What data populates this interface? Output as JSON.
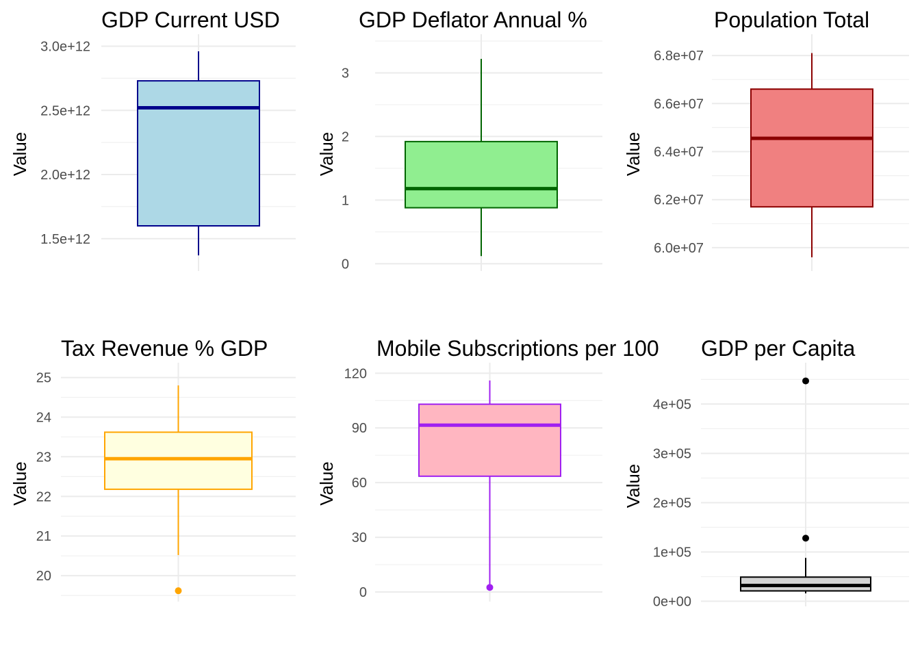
{
  "chart_data": [
    {
      "type": "box",
      "title": "GDP Current USD",
      "ylabel": "Value",
      "yticks": [
        "1.5e+12",
        "2.0e+12",
        "2.5e+12",
        "3.0e+12"
      ],
      "ytick_values": [
        1500000000000.0,
        2000000000000.0,
        2500000000000.0,
        3000000000000.0
      ],
      "ylim": [
        1280000000000.0,
        3040000000000.0
      ],
      "box": {
        "min": 1370000000000.0,
        "q1": 1600000000000.0,
        "median": 2520000000000.0,
        "q3": 2730000000000.0,
        "max": 2960000000000.0
      },
      "outliers": [],
      "fill": "#ADD8E6",
      "stroke": "#00008B"
    },
    {
      "type": "box",
      "title": "GDP Deflator Annual %",
      "ylabel": "Value",
      "yticks": [
        "0",
        "1",
        "2",
        "3"
      ],
      "ytick_values": [
        0,
        1,
        2,
        3
      ],
      "ylim": [
        -0.05,
        3.5
      ],
      "box": {
        "min": 0.12,
        "q1": 0.88,
        "median": 1.18,
        "q3": 1.92,
        "max": 3.22
      },
      "outliers": [],
      "fill": "#90EE90",
      "stroke": "#006400"
    },
    {
      "type": "box",
      "title": "Population Total",
      "ylabel": "Value",
      "yticks": [
        "6.0e+07",
        "6.2e+07",
        "6.4e+07",
        "6.6e+07",
        "6.8e+07"
      ],
      "ytick_values": [
        60000000.0,
        62000000.0,
        64000000.0,
        66000000.0,
        68000000.0
      ],
      "ylim": [
        59200000.0,
        68600000.0
      ],
      "box": {
        "min": 59600000.0,
        "q1": 61700000.0,
        "median": 64550000.0,
        "q3": 66600000.0,
        "max": 68100000.0
      },
      "outliers": [],
      "fill": "#F08080",
      "stroke": "#8B0000"
    },
    {
      "type": "box",
      "title": "Tax Revenue % GDP",
      "ylabel": "Value",
      "yticks": [
        "20",
        "21",
        "22",
        "23",
        "24",
        "25"
      ],
      "ytick_values": [
        20,
        21,
        22,
        23,
        24,
        25
      ],
      "ylim": [
        19.45,
        25.2
      ],
      "box": {
        "min": 20.52,
        "q1": 22.18,
        "median": 22.95,
        "q3": 23.62,
        "max": 24.8
      },
      "outliers": [
        19.62
      ],
      "fill": "#FFFFE0",
      "stroke": "#FFA500"
    },
    {
      "type": "box",
      "title": "Mobile Subscriptions per 100",
      "ylabel": "Value",
      "yticks": [
        "0",
        "30",
        "60",
        "90",
        "120"
      ],
      "ytick_values": [
        0,
        30,
        60,
        90,
        120
      ],
      "ylim": [
        -3,
        122
      ],
      "box": {
        "min": 2.5,
        "q1": 63.5,
        "median": 91.5,
        "q3": 103,
        "max": 116
      },
      "outliers": [
        2.5
      ],
      "fill": "#FFB6C1",
      "stroke": "#A020F0"
    },
    {
      "type": "box",
      "title": "GDP per Capita",
      "ylabel": "Value",
      "yticks": [
        "0e+00",
        "1e+05",
        "2e+05",
        "3e+05",
        "4e+05"
      ],
      "ytick_values": [
        0,
        100000,
        200000,
        300000,
        400000
      ],
      "ylim": [
        -2000,
        470000
      ],
      "box": {
        "min": 16000,
        "q1": 21000,
        "median": 32000,
        "q3": 49000,
        "max": 88000
      },
      "outliers": [
        128000,
        447000
      ],
      "fill": "#D3D3D3",
      "stroke": "#000000"
    }
  ]
}
